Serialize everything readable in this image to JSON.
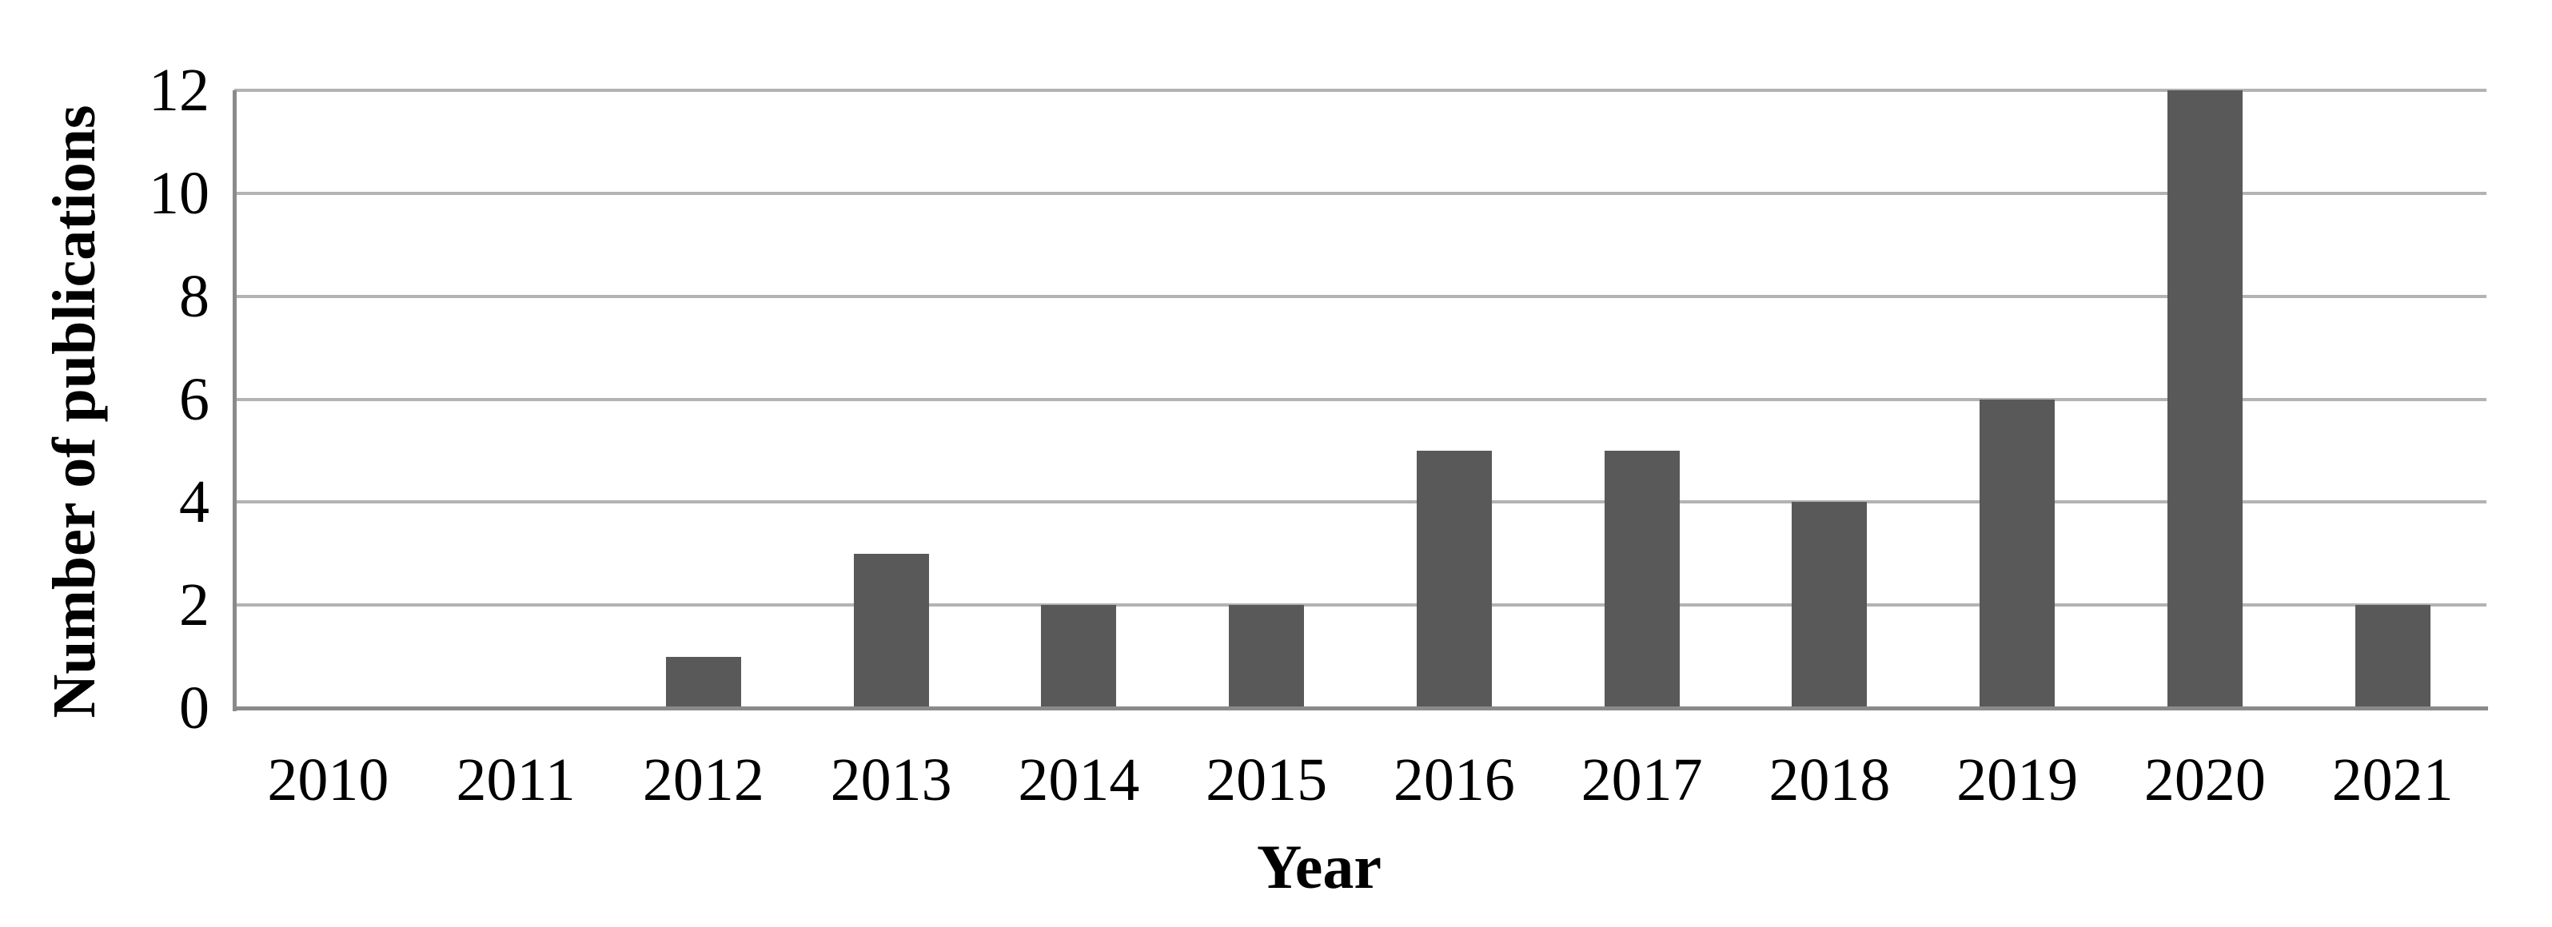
{
  "chart_data": {
    "type": "bar",
    "title": "",
    "categories": [
      "2010",
      "2011",
      "2012",
      "2013",
      "2014",
      "2015",
      "2016",
      "2017",
      "2018",
      "2019",
      "2020",
      "2021"
    ],
    "values": [
      0,
      0,
      1,
      3,
      2,
      2,
      5,
      5,
      4,
      6,
      12,
      2
    ],
    "xlabel": "Year",
    "ylabel": "Number of publications",
    "ylim": [
      0,
      12
    ],
    "yticks": [
      0,
      2,
      4,
      6,
      8,
      10,
      12
    ],
    "grid": "horizontal-major",
    "legend": "none",
    "colors": {
      "bar": "#595959",
      "gridline": "#b3b3b3",
      "axis": "#8a8a8a",
      "text": "#000000",
      "background": "#ffffff"
    }
  }
}
